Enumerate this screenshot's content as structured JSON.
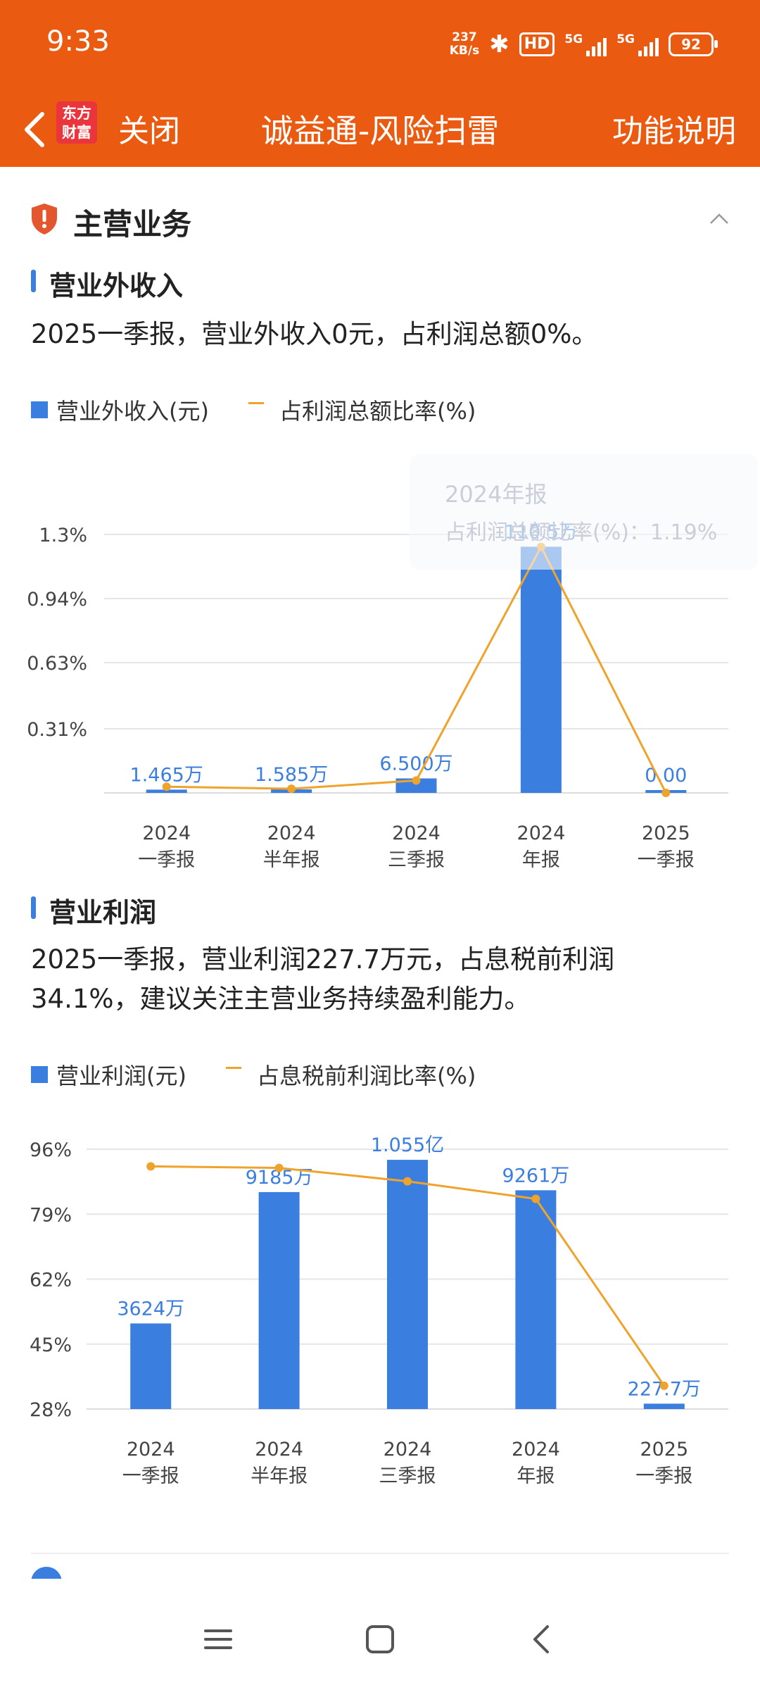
{
  "status_bar": {
    "time": "9:33",
    "net_speed_value": "237",
    "net_speed_unit": "KB/s",
    "hd_badge": "HD",
    "signal1": "5G",
    "signal2": "5G",
    "battery": "92",
    "icons": [
      "bluetooth-icon",
      "signal-icon",
      "battery-icon"
    ]
  },
  "nav": {
    "back_icon": "chevron-left-icon",
    "logo_line1": "东方",
    "logo_line2": "财富",
    "close_label": "关闭",
    "title": "诚益通-风险扫雷",
    "help_label": "功能说明"
  },
  "section": {
    "title": "主营业务",
    "icon": "shield-warning-icon",
    "collapse_icon": "chevron-up-icon"
  },
  "non_operating_income": {
    "subtitle": "营业外收入",
    "summary": "2025一季报，营业外收入0元，占利润总额0%。",
    "legend_bar": "营业外收入(元)",
    "legend_line": "占利润总额比率(%)",
    "tooltip_line1": "2024年报",
    "tooltip_line2": "占利润总额比率(%)：1.19%"
  },
  "operating_profit": {
    "subtitle": "营业利润",
    "summary": "2025一季报，营业利润227.7万元，占息税前利润34.1%，建议关注主营业务持续盈利能力。",
    "legend_bar": "营业利润(元)",
    "legend_line": "占息税前利润比率(%)"
  },
  "colors": {
    "header": "#ea5a10",
    "bar": "#3a7fe0",
    "line": "#f0a32b",
    "label": "#3a7fe0"
  },
  "chart_data": [
    {
      "type": "bar",
      "categories": [
        [
          "2024",
          "一季报"
        ],
        [
          "2024",
          "半年报"
        ],
        [
          "2024",
          "三季报"
        ],
        [
          "2024",
          "年报"
        ],
        [
          "2025",
          "一季报"
        ]
      ],
      "series": [
        {
          "name": "营业外收入(元)",
          "kind": "bar",
          "values": [
            14650,
            15850,
            65000,
            1105000,
            0
          ],
          "labels": [
            "1.465万",
            "1.585万",
            "6.500万",
            "110.5万",
            "0.00"
          ]
        },
        {
          "name": "占利润总额比率(%)",
          "kind": "line",
          "values": [
            0.03,
            0.02,
            0.06,
            1.19,
            0
          ]
        }
      ],
      "y_ticks": [
        "1.3%",
        "0.94%",
        "0.63%",
        "0.31%"
      ],
      "y_tick_values": [
        1.25,
        0.94,
        0.63,
        0.31
      ],
      "ylim_pct": [
        0,
        1.25
      ],
      "ylim_value": [
        0,
        1160000
      ],
      "grid": true
    },
    {
      "type": "bar",
      "categories": [
        [
          "2024",
          "一季报"
        ],
        [
          "2024",
          "半年报"
        ],
        [
          "2024",
          "三季报"
        ],
        [
          "2024",
          "年报"
        ],
        [
          "2025",
          "一季报"
        ]
      ],
      "series": [
        {
          "name": "营业利润(元)",
          "kind": "bar",
          "values": [
            36240000,
            91850000,
            105500000,
            92610000,
            2277000
          ],
          "labels": [
            "3624万",
            "9185万",
            "1.055亿",
            "9261万",
            "227.7万"
          ]
        },
        {
          "name": "占息税前利润比率(%)",
          "kind": "line",
          "values": [
            91.5,
            91.1,
            87.6,
            83.0,
            34.1
          ]
        }
      ],
      "y_ticks": [
        "96%",
        "79%",
        "62%",
        "45%",
        "28%"
      ],
      "y_tick_values": [
        96,
        79,
        62,
        45,
        28
      ],
      "ylim_pct": [
        28,
        96
      ],
      "ylim_value": [
        0,
        110000000
      ],
      "grid": true
    }
  ],
  "system_nav": {
    "menu_icon": "menu-icon",
    "home_icon": "home-square-icon",
    "back_icon": "back-chevron-icon"
  }
}
